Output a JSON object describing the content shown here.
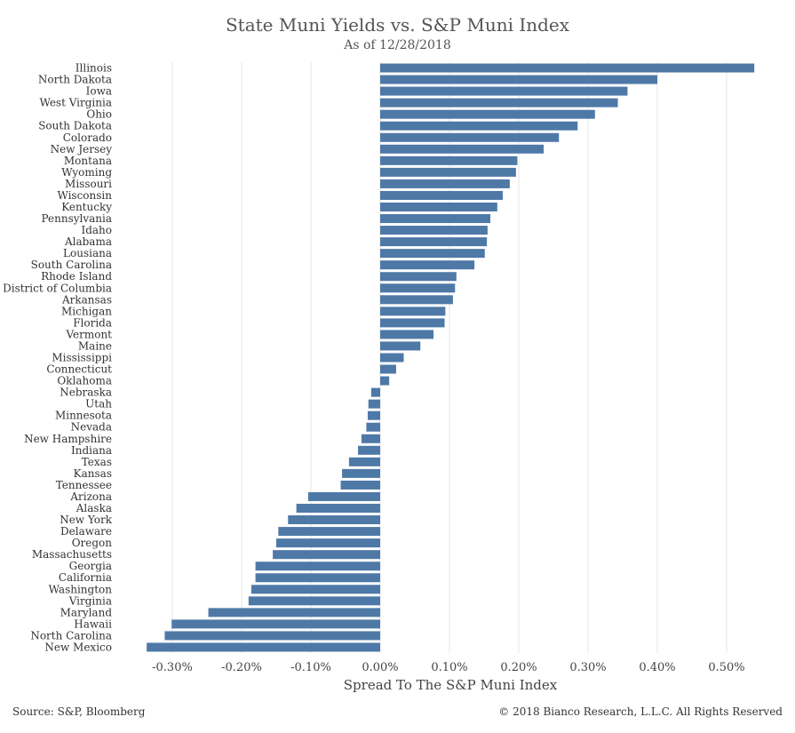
{
  "header": {
    "title": "State Muni Yields vs. S&P Muni Index",
    "subtitle": "As of 12/28/2018"
  },
  "footer": {
    "source": "Source: S&P, Bloomberg",
    "copyright": "© 2018 Bianco Research, L.L.C. All Rights Reserved"
  },
  "colors": {
    "bar": "#4e79a7",
    "grid": "#e6e6e6",
    "text": "#444444"
  },
  "chart_data": {
    "type": "bar",
    "orientation": "horizontal",
    "xlabel": "Spread To The S&P Muni Index",
    "ylabel": "",
    "xlim": [
      -0.34,
      0.57
    ],
    "xticks": [
      -0.3,
      -0.2,
      -0.1,
      0.0,
      0.1,
      0.2,
      0.3,
      0.4,
      0.5
    ],
    "xtick_labels": [
      "-0.30%",
      "-0.20%",
      "-0.10%",
      "0.00%",
      "0.10%",
      "0.20%",
      "0.30%",
      "0.40%",
      "0.50%"
    ],
    "grid": "vertical",
    "categories": [
      "Illinois",
      "North Dakota",
      "Iowa",
      "West Virginia",
      "Ohio",
      "South Dakota",
      "Colorado",
      "New Jersey",
      "Montana",
      "Wyoming",
      "Missouri",
      "Wisconsin",
      "Kentucky",
      "Pennsylvania",
      "Idaho",
      "Alabama",
      "Lousiana",
      "South Carolina",
      "Rhode Island",
      "District of Columbia",
      "Arkansas",
      "Michigan",
      "Florida",
      "Vermont",
      "Maine",
      "Mississippi",
      "Connecticut",
      "Oklahoma",
      "Nebraska",
      "Utah",
      "Minnesota",
      "Nevada",
      "New Hampshire",
      "Indiana",
      "Texas",
      "Kansas",
      "Tennessee",
      "Arizona",
      "Alaska",
      "New York",
      "Delaware",
      "Oregon",
      "Massachusetts",
      "Georgia",
      "California",
      "Washington",
      "Virginia",
      "Maryland",
      "Hawaii",
      "North Carolina",
      "New Mexico"
    ],
    "values": [
      0.54,
      0.4,
      0.357,
      0.343,
      0.31,
      0.285,
      0.258,
      0.236,
      0.198,
      0.196,
      0.187,
      0.177,
      0.169,
      0.159,
      0.155,
      0.154,
      0.151,
      0.136,
      0.11,
      0.108,
      0.105,
      0.094,
      0.093,
      0.077,
      0.058,
      0.034,
      0.023,
      0.013,
      -0.013,
      -0.017,
      -0.018,
      -0.02,
      -0.027,
      -0.032,
      -0.045,
      -0.055,
      -0.057,
      -0.104,
      -0.121,
      -0.133,
      -0.147,
      -0.15,
      -0.155,
      -0.18,
      -0.18,
      -0.186,
      -0.19,
      -0.248,
      -0.301,
      -0.311,
      -0.337
    ]
  }
}
